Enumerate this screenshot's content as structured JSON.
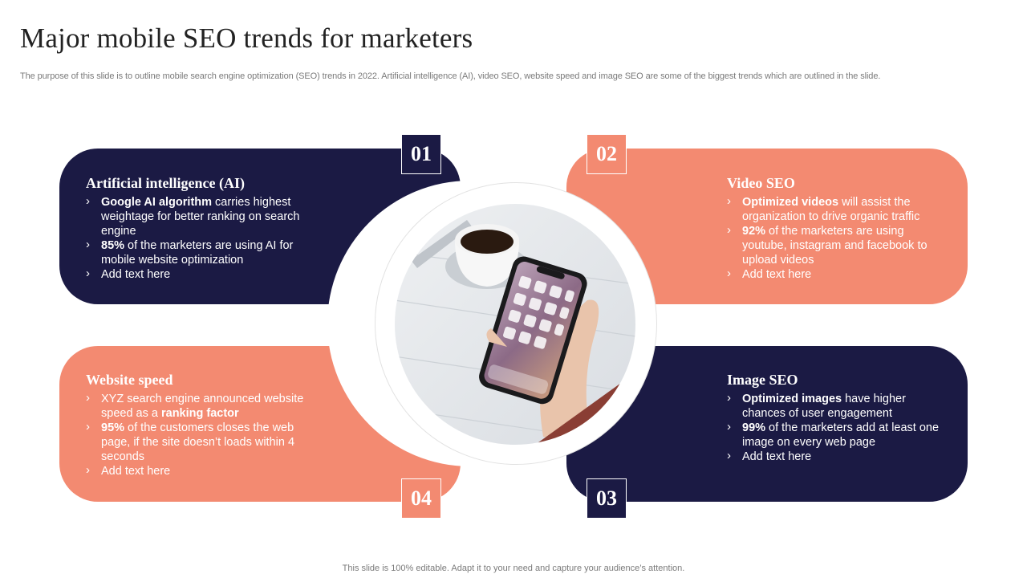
{
  "title": "Major mobile SEO trends for marketers",
  "subtitle": "The purpose of this slide is to outline mobile search engine optimization (SEO) trends in 2022. Artificial intelligence (AI), video SEO, website speed and image SEO are some of the biggest trends which are outlined in the slide.",
  "footer": "This slide is 100% editable. Adapt it to your need and capture your audience’s attention.",
  "colors": {
    "navy": "#1b1a44",
    "coral": "#f38a71"
  },
  "center_image": {
    "icon": "smartphone-in-hand-with-coffee-photo"
  },
  "cards": [
    {
      "number": "01",
      "heading": "Artificial intelligence (AI)",
      "bullets": [
        {
          "bold": "Google AI algorithm",
          "text": " carries highest weightage for better ranking on search engine"
        },
        {
          "bold": "85%",
          "text": " of the marketers are using AI for mobile website optimization"
        },
        {
          "bold": "",
          "text": "Add text here"
        }
      ]
    },
    {
      "number": "02",
      "heading": "Video SEO",
      "bullets": [
        {
          "bold": "Optimized videos",
          "text": " will assist the organization to drive organic traffic"
        },
        {
          "bold": "92%",
          "text": " of the marketers are using youtube, instagram and facebook to upload videos"
        },
        {
          "bold": "",
          "text": "Add text here"
        }
      ]
    },
    {
      "number": "03",
      "heading": "Image SEO",
      "bullets": [
        {
          "bold": "Optimized images",
          "text": " have higher chances of user engagement"
        },
        {
          "bold": "99%",
          "text": " of the marketers add at least one image on every web page"
        },
        {
          "bold": "",
          "text": "Add text here"
        }
      ]
    },
    {
      "number": "04",
      "heading": "Website speed",
      "bullets": [
        {
          "pre": "XYZ  search engine announced website speed as a ",
          "bold": "ranking factor",
          "text": ""
        },
        {
          "bold": "95%",
          "text": " of the customers closes the web page, if the site doesn’t loads within 4 seconds"
        },
        {
          "bold": "",
          "text": "Add text here"
        }
      ]
    }
  ]
}
